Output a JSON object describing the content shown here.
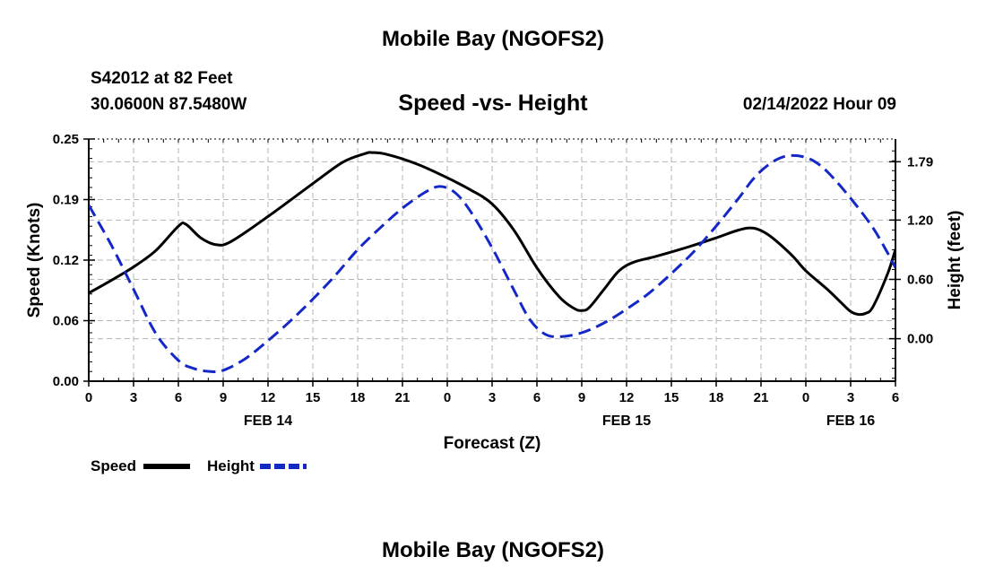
{
  "page": {
    "title": "Mobile Bay (NGOFS2)",
    "footer_title": "Mobile Bay (NGOFS2)"
  },
  "station": {
    "line1": "S42012 at 82 Feet",
    "line2": "30.0600N  87.5480W"
  },
  "chart_data": {
    "type": "line",
    "title": "Speed -vs- Height",
    "datetime_label": "02/14/2022 Hour 09",
    "xlabel": "Forecast (Z)",
    "ylabel": "Speed (Knots)",
    "y2label": "Height (feet)",
    "x_range_hours": [
      0,
      54
    ],
    "x_ticks": [
      {
        "hour": 0,
        "label": "0"
      },
      {
        "hour": 3,
        "label": "3"
      },
      {
        "hour": 6,
        "label": "6"
      },
      {
        "hour": 9,
        "label": "9"
      },
      {
        "hour": 12,
        "label": "12"
      },
      {
        "hour": 15,
        "label": "15"
      },
      {
        "hour": 18,
        "label": "18"
      },
      {
        "hour": 21,
        "label": "21"
      },
      {
        "hour": 24,
        "label": "0"
      },
      {
        "hour": 27,
        "label": "3"
      },
      {
        "hour": 30,
        "label": "6"
      },
      {
        "hour": 33,
        "label": "9"
      },
      {
        "hour": 36,
        "label": "12"
      },
      {
        "hour": 39,
        "label": "15"
      },
      {
        "hour": 42,
        "label": "18"
      },
      {
        "hour": 45,
        "label": "21"
      },
      {
        "hour": 48,
        "label": "0"
      },
      {
        "hour": 51,
        "label": "3"
      },
      {
        "hour": 54,
        "label": "6"
      }
    ],
    "date_labels": [
      {
        "hour": 12,
        "label": "FEB 14"
      },
      {
        "hour": 36,
        "label": "FEB 15"
      },
      {
        "hour": 51,
        "label": "FEB 16"
      }
    ],
    "y_left": {
      "range": [
        0,
        0.25
      ],
      "ticks": [
        {
          "value": 0,
          "label": "0.00"
        },
        {
          "value": 0.0625,
          "label": "0.06"
        },
        {
          "value": 0.125,
          "label": "0.12"
        },
        {
          "value": 0.1875,
          "label": "0.19"
        },
        {
          "value": 0.25,
          "label": "0.25"
        }
      ]
    },
    "y_right": {
      "range": [
        -0.43,
        2.02
      ],
      "ticks": [
        {
          "value": 0.0,
          "label": "0.00"
        },
        {
          "value": 0.6,
          "label": "0.60"
        },
        {
          "value": 1.2,
          "label": "1.20"
        },
        {
          "value": 1.79,
          "label": "1.79"
        }
      ]
    },
    "grid": true,
    "legend_position": "bottom-left",
    "series": [
      {
        "name": "Speed",
        "axis": "left",
        "color": "#000000",
        "style": "solid",
        "points": [
          [
            0,
            0.091
          ],
          [
            1.5,
            0.104
          ],
          [
            3,
            0.118
          ],
          [
            4.5,
            0.135
          ],
          [
            6,
            0.16
          ],
          [
            6.5,
            0.162
          ],
          [
            7.5,
            0.148
          ],
          [
            8.5,
            0.141
          ],
          [
            9.5,
            0.144
          ],
          [
            12,
            0.17
          ],
          [
            15,
            0.204
          ],
          [
            17,
            0.226
          ],
          [
            18.5,
            0.235
          ],
          [
            19,
            0.236
          ],
          [
            20,
            0.234
          ],
          [
            22,
            0.224
          ],
          [
            24,
            0.21
          ],
          [
            25.5,
            0.198
          ],
          [
            27,
            0.183
          ],
          [
            28.5,
            0.155
          ],
          [
            30,
            0.117
          ],
          [
            31.5,
            0.087
          ],
          [
            32.5,
            0.075
          ],
          [
            33,
            0.073
          ],
          [
            33.5,
            0.076
          ],
          [
            34.5,
            0.095
          ],
          [
            35.5,
            0.114
          ],
          [
            36.5,
            0.123
          ],
          [
            38,
            0.129
          ],
          [
            40,
            0.138
          ],
          [
            42,
            0.148
          ],
          [
            43.5,
            0.156
          ],
          [
            44.5,
            0.158
          ],
          [
            45.5,
            0.151
          ],
          [
            47,
            0.131
          ],
          [
            48,
            0.114
          ],
          [
            49.5,
            0.094
          ],
          [
            50.5,
            0.079
          ],
          [
            51,
            0.072
          ],
          [
            51.5,
            0.069
          ],
          [
            52,
            0.07
          ],
          [
            52.5,
            0.077
          ],
          [
            53.5,
            0.112
          ],
          [
            54,
            0.136
          ]
        ]
      },
      {
        "name": "Height",
        "axis": "right",
        "color": "#1428c8",
        "style": "dashed",
        "points": [
          [
            0,
            1.35
          ],
          [
            1.5,
            0.95
          ],
          [
            3,
            0.5
          ],
          [
            4.5,
            0.05
          ],
          [
            6,
            -0.22
          ],
          [
            7,
            -0.3
          ],
          [
            8,
            -0.33
          ],
          [
            9,
            -0.32
          ],
          [
            10.5,
            -0.2
          ],
          [
            12,
            -0.02
          ],
          [
            13.5,
            0.18
          ],
          [
            15,
            0.4
          ],
          [
            16.5,
            0.64
          ],
          [
            18,
            0.9
          ],
          [
            19.5,
            1.12
          ],
          [
            21,
            1.32
          ],
          [
            22.5,
            1.48
          ],
          [
            23.5,
            1.54
          ],
          [
            24.5,
            1.48
          ],
          [
            25.5,
            1.3
          ],
          [
            27,
            0.92
          ],
          [
            28.5,
            0.48
          ],
          [
            29.5,
            0.2
          ],
          [
            30.5,
            0.05
          ],
          [
            31.5,
            0.02
          ],
          [
            33,
            0.06
          ],
          [
            34.5,
            0.16
          ],
          [
            36,
            0.3
          ],
          [
            37.5,
            0.46
          ],
          [
            39,
            0.66
          ],
          [
            40.5,
            0.88
          ],
          [
            42,
            1.14
          ],
          [
            43.5,
            1.42
          ],
          [
            44.5,
            1.62
          ],
          [
            45.5,
            1.76
          ],
          [
            46.5,
            1.84
          ],
          [
            47.5,
            1.85
          ],
          [
            48.5,
            1.8
          ],
          [
            49.5,
            1.68
          ],
          [
            51,
            1.42
          ],
          [
            52.5,
            1.12
          ],
          [
            53.5,
            0.86
          ],
          [
            54,
            0.72
          ]
        ]
      }
    ]
  }
}
